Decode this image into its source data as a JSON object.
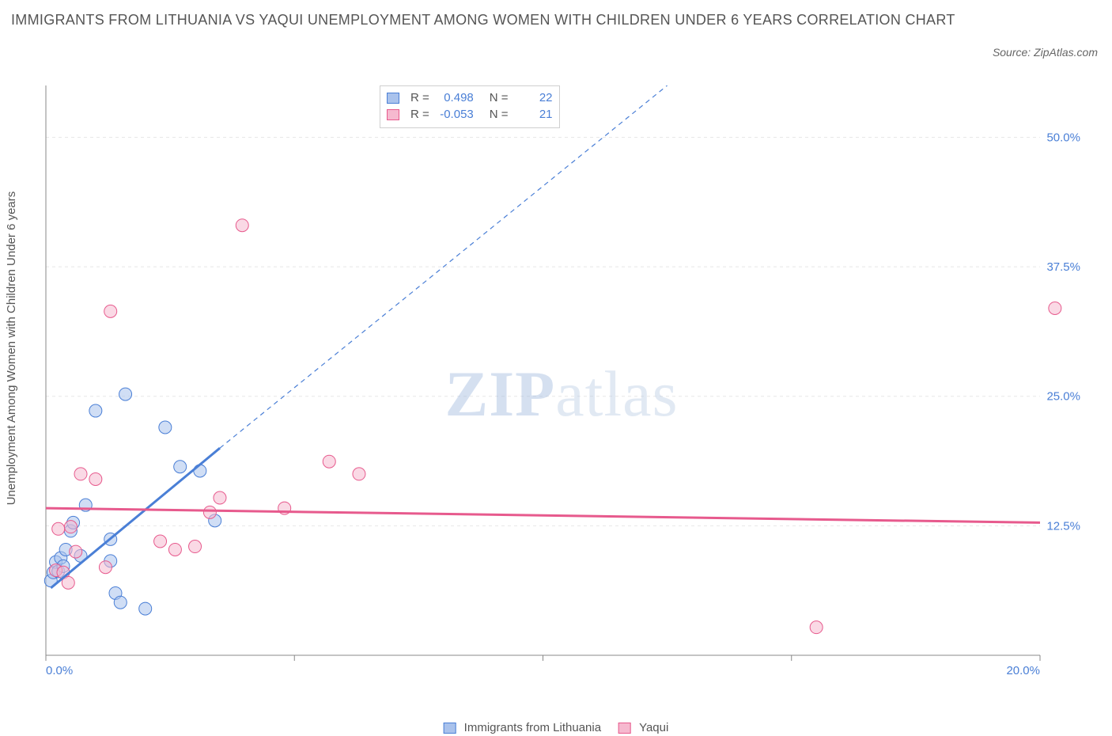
{
  "title": "IMMIGRANTS FROM LITHUANIA VS YAQUI UNEMPLOYMENT AMONG WOMEN WITH CHILDREN UNDER 6 YEARS CORRELATION CHART",
  "source_label": "Source: ZipAtlas.com",
  "ylabel": "Unemployment Among Women with Children Under 6 years",
  "chart": {
    "type": "scatter",
    "xlim": [
      0,
      20
    ],
    "ylim": [
      0,
      55
    ],
    "xtick_values": [
      0,
      20
    ],
    "xtick_labels": [
      "0.0%",
      "20.0%"
    ],
    "xtick_minor": [
      5,
      10,
      15
    ],
    "ytick_values": [
      12.5,
      25.0,
      37.5,
      50.0
    ],
    "ytick_labels": [
      "12.5%",
      "25.0%",
      "37.5%",
      "50.0%"
    ],
    "background_color": "#ffffff",
    "grid_color": "#e7e7e7",
    "axis_color": "#888888",
    "marker_radius": 8,
    "marker_opacity": 0.55,
    "line_width_solid": 3,
    "line_width_dash": 1.2,
    "dash_pattern": "6,5",
    "series": [
      {
        "name": "Immigrants from Lithuania",
        "color": "#4a7fd6",
        "fill": "#a9c2ec",
        "R": "0.498",
        "N": "22",
        "points": [
          [
            0.1,
            7.2
          ],
          [
            0.15,
            8.0
          ],
          [
            0.2,
            9.0
          ],
          [
            0.25,
            8.1
          ],
          [
            0.3,
            9.4
          ],
          [
            0.35,
            8.6
          ],
          [
            0.4,
            10.2
          ],
          [
            0.5,
            12.0
          ],
          [
            0.55,
            12.8
          ],
          [
            0.7,
            9.6
          ],
          [
            0.8,
            14.5
          ],
          [
            1.3,
            9.1
          ],
          [
            1.4,
            6.0
          ],
          [
            1.5,
            5.1
          ],
          [
            1.0,
            23.6
          ],
          [
            1.3,
            11.2
          ],
          [
            1.6,
            25.2
          ],
          [
            2.4,
            22.0
          ],
          [
            2.7,
            18.2
          ],
          [
            2.0,
            4.5
          ],
          [
            3.1,
            17.8
          ],
          [
            3.4,
            13.0
          ]
        ],
        "fit": {
          "solid": [
            [
              0.1,
              6.5
            ],
            [
              3.5,
              20.0
            ]
          ],
          "dash": [
            [
              3.5,
              20.0
            ],
            [
              12.5,
              55.0
            ]
          ]
        }
      },
      {
        "name": "Yaqui",
        "color": "#e75a8d",
        "fill": "#f6b9cf",
        "R": "-0.053",
        "N": "21",
        "points": [
          [
            0.2,
            8.2
          ],
          [
            0.25,
            12.2
          ],
          [
            0.5,
            12.4
          ],
          [
            0.6,
            10.0
          ],
          [
            0.7,
            17.5
          ],
          [
            1.0,
            17.0
          ],
          [
            1.2,
            8.5
          ],
          [
            1.3,
            33.2
          ],
          [
            2.3,
            11.0
          ],
          [
            2.6,
            10.2
          ],
          [
            3.0,
            10.5
          ],
          [
            3.3,
            13.8
          ],
          [
            3.5,
            15.2
          ],
          [
            3.95,
            41.5
          ],
          [
            4.8,
            14.2
          ],
          [
            5.7,
            18.7
          ],
          [
            6.3,
            17.5
          ],
          [
            15.5,
            2.7
          ],
          [
            20.3,
            33.5
          ],
          [
            0.35,
            8.0
          ],
          [
            0.45,
            7.0
          ]
        ],
        "fit": {
          "solid": [
            [
              0.0,
              14.2
            ],
            [
              20.0,
              12.8
            ]
          ],
          "dash": null
        }
      }
    ]
  },
  "legend": [
    {
      "label": "Immigrants from Lithuania",
      "fill": "#a9c2ec",
      "stroke": "#4a7fd6"
    },
    {
      "label": "Yaqui",
      "fill": "#f6b9cf",
      "stroke": "#e75a8d"
    }
  ],
  "watermark": {
    "bold": "ZIP",
    "rest": "atlas"
  }
}
